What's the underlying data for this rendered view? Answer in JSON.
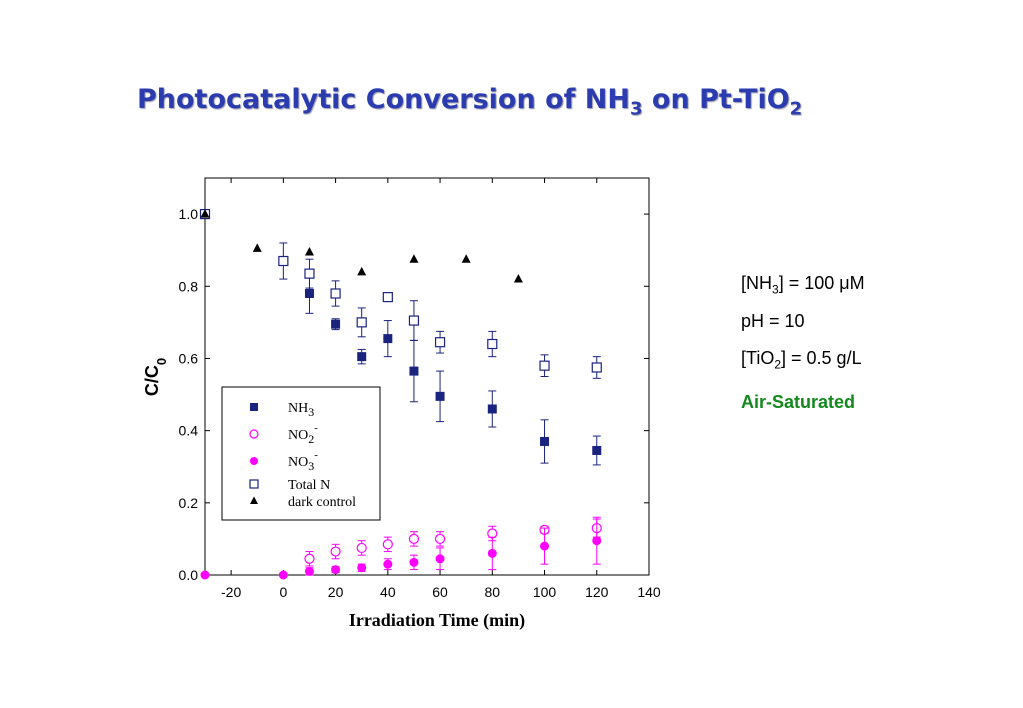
{
  "title": {
    "main": "Photocatalytic Conversion of NH",
    "sub1": "3",
    "mid": " on Pt-TiO",
    "sub2": "2"
  },
  "conditions": {
    "nh3": {
      "a": "[NH",
      "sub": "3",
      "b": "] = 100 μM"
    },
    "ph": "pH = 10",
    "tio2": {
      "a": "[TiO",
      "sub": "2",
      "b": "] = 0.5 g/L"
    },
    "air": "Air-Saturated"
  },
  "colors": {
    "title": "#2b3bb0",
    "navy": "#1a237e",
    "magenta": "#ff00ff",
    "green": "#13891d"
  },
  "chart_data": {
    "type": "scatter",
    "title": "",
    "xlabel": "Irradiation Time (min)",
    "ylabel": {
      "a": "C/C",
      "sub": "0"
    },
    "xlim": [
      -30,
      140
    ],
    "ylim": [
      0,
      1.1
    ],
    "xticks": [
      -20,
      0,
      20,
      40,
      60,
      80,
      100,
      120,
      140
    ],
    "yticks": [
      0.0,
      0.2,
      0.4,
      0.6,
      0.8,
      1.0
    ],
    "ytick_labels": [
      "0.0",
      "0.2",
      "0.4",
      "0.6",
      "0.8",
      "1.0"
    ],
    "grid": false,
    "legend_position": "bottom-left",
    "series": [
      {
        "key": "nh3",
        "legend": {
          "a": "NH",
          "sub": "3"
        },
        "marker": "filled-square",
        "color": "#1a237e",
        "points": [
          {
            "x": -30,
            "y": 1.0
          },
          {
            "x": 10,
            "y": 0.78,
            "err": 0.055
          },
          {
            "x": 20,
            "y": 0.695,
            "err": 0.015
          },
          {
            "x": 30,
            "y": 0.605,
            "err": 0.02
          },
          {
            "x": 40,
            "y": 0.655,
            "err": 0.05
          },
          {
            "x": 50,
            "y": 0.565,
            "err": 0.085
          },
          {
            "x": 60,
            "y": 0.495,
            "err": 0.07
          },
          {
            "x": 80,
            "y": 0.46,
            "err": 0.05
          },
          {
            "x": 100,
            "y": 0.37,
            "err": 0.06
          },
          {
            "x": 120,
            "y": 0.345,
            "err": 0.04
          }
        ]
      },
      {
        "key": "no2",
        "legend": {
          "a": "NO",
          "sub": "2",
          "sup": "-"
        },
        "marker": "open-circle",
        "color": "#ff00ff",
        "points": [
          {
            "x": 10,
            "y": 0.045,
            "err": 0.02
          },
          {
            "x": 20,
            "y": 0.065,
            "err": 0.02
          },
          {
            "x": 30,
            "y": 0.075,
            "err": 0.02
          },
          {
            "x": 40,
            "y": 0.085,
            "err": 0.02
          },
          {
            "x": 50,
            "y": 0.1,
            "err": 0.02
          },
          {
            "x": 60,
            "y": 0.1,
            "err": 0.02
          },
          {
            "x": 80,
            "y": 0.115,
            "err": 0.02
          },
          {
            "x": 100,
            "y": 0.125,
            "err": 0.01
          },
          {
            "x": 120,
            "y": 0.13,
            "err": 0.025
          }
        ]
      },
      {
        "key": "no3",
        "legend": {
          "a": "NO",
          "sub": "3",
          "sup": "-"
        },
        "marker": "filled-circle",
        "color": "#ff00ff",
        "points": [
          {
            "x": -30,
            "y": 0.0
          },
          {
            "x": 0,
            "y": 0.0
          },
          {
            "x": 10,
            "y": 0.01,
            "err": 0.01
          },
          {
            "x": 20,
            "y": 0.015,
            "err": 0.008
          },
          {
            "x": 30,
            "y": 0.02,
            "err": 0.01
          },
          {
            "x": 40,
            "y": 0.03,
            "err": 0.015
          },
          {
            "x": 50,
            "y": 0.035,
            "err": 0.02
          },
          {
            "x": 60,
            "y": 0.045,
            "err": 0.03
          },
          {
            "x": 80,
            "y": 0.06,
            "err": 0.045
          },
          {
            "x": 100,
            "y": 0.08,
            "err": 0.05
          },
          {
            "x": 120,
            "y": 0.095,
            "err": 0.065
          }
        ]
      },
      {
        "key": "totaln",
        "legend": {
          "a": "Total N"
        },
        "marker": "open-square",
        "color": "#1a237e",
        "points": [
          {
            "x": -30,
            "y": 1.0
          },
          {
            "x": 0,
            "y": 0.87,
            "err": 0.05
          },
          {
            "x": 10,
            "y": 0.835,
            "err": 0.04
          },
          {
            "x": 20,
            "y": 0.78,
            "err": 0.035
          },
          {
            "x": 30,
            "y": 0.7,
            "err": 0.04
          },
          {
            "x": 40,
            "y": 0.77
          },
          {
            "x": 50,
            "y": 0.705,
            "err": 0.055
          },
          {
            "x": 60,
            "y": 0.645,
            "err": 0.03
          },
          {
            "x": 80,
            "y": 0.64,
            "err": 0.035
          },
          {
            "x": 100,
            "y": 0.58,
            "err": 0.03
          },
          {
            "x": 120,
            "y": 0.575,
            "err": 0.03
          }
        ]
      },
      {
        "key": "dark",
        "legend": {
          "a": "dark control"
        },
        "marker": "filled-triangle",
        "color": "#000000",
        "points": [
          {
            "x": -30,
            "y": 1.0
          },
          {
            "x": -10,
            "y": 0.905
          },
          {
            "x": 10,
            "y": 0.895
          },
          {
            "x": 30,
            "y": 0.84
          },
          {
            "x": 50,
            "y": 0.875
          },
          {
            "x": 70,
            "y": 0.875
          },
          {
            "x": 90,
            "y": 0.82
          }
        ]
      }
    ]
  }
}
